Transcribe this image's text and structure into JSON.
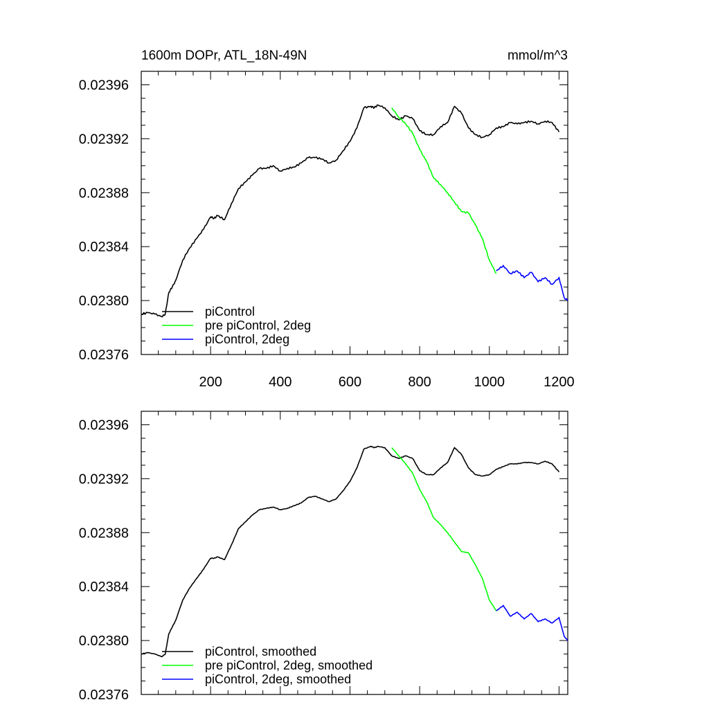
{
  "chart_data": [
    {
      "type": "line",
      "title": "1600m DOPr, ATL_18N-49N",
      "units": "mmol/m^3",
      "xlabel": "",
      "ylabel": "",
      "xlim": [
        1,
        1225
      ],
      "ylim": [
        0.02376,
        0.02397
      ],
      "x_ticks": [
        200,
        400,
        600,
        800,
        1000,
        1200
      ],
      "x_tick_labels": [
        "200",
        "400",
        "600",
        "800",
        "1000",
        "1200"
      ],
      "y_ticks": [
        0.02376,
        0.0238,
        0.02384,
        0.02388,
        0.02392,
        0.02396
      ],
      "y_tick_labels": [
        "0.02376",
        "0.02380",
        "0.02384",
        "0.02388",
        "0.02392",
        "0.02396"
      ],
      "grid": false,
      "legend_position": "bottom-left",
      "series": [
        {
          "name": "piControl",
          "color": "#000000",
          "x": [
            1,
            20,
            40,
            60,
            70,
            80,
            90,
            100,
            120,
            140,
            160,
            180,
            200,
            210,
            220,
            240,
            260,
            280,
            300,
            320,
            340,
            360,
            380,
            400,
            420,
            440,
            460,
            480,
            500,
            520,
            540,
            560,
            580,
            600,
            620,
            640,
            660,
            670,
            680,
            700,
            720,
            740,
            760,
            780,
            800,
            820,
            840,
            860,
            880,
            900,
            920,
            940,
            960,
            980,
            1000,
            1020,
            1040,
            1060,
            1080,
            1100,
            1120,
            1140,
            1160,
            1180,
            1200
          ],
          "y": [
            0.02379,
            0.023791,
            0.02379,
            0.023788,
            0.02379,
            0.023806,
            0.02381,
            0.023815,
            0.02383,
            0.023839,
            0.023846,
            0.023853,
            0.023862,
            0.023861,
            0.023863,
            0.02386,
            0.023872,
            0.023883,
            0.023888,
            0.023893,
            0.023898,
            0.023898,
            0.0239,
            0.023896,
            0.023898,
            0.023899,
            0.023902,
            0.023906,
            0.023906,
            0.023905,
            0.023902,
            0.023904,
            0.023911,
            0.023918,
            0.023928,
            0.023943,
            0.023944,
            0.023943,
            0.023945,
            0.023943,
            0.023937,
            0.023934,
            0.023937,
            0.023935,
            0.023926,
            0.023923,
            0.023923,
            0.023929,
            0.023932,
            0.023944,
            0.023939,
            0.023928,
            0.023923,
            0.023921,
            0.023923,
            0.023928,
            0.023929,
            0.023932,
            0.023931,
            0.023932,
            0.023933,
            0.023931,
            0.023933,
            0.023932,
            0.023925
          ]
        },
        {
          "name": "pre piControl, 2deg",
          "color": "#00ff00",
          "x": [
            720,
            740,
            760,
            780,
            800,
            820,
            840,
            860,
            880,
            900,
            920,
            940,
            960,
            980,
            1000,
            1020
          ],
          "y": [
            0.023943,
            0.023936,
            0.023931,
            0.023924,
            0.023912,
            0.023903,
            0.023891,
            0.023886,
            0.02388,
            0.023873,
            0.023866,
            0.023865,
            0.023856,
            0.023846,
            0.02383,
            0.02382
          ]
        },
        {
          "name": "piControl, 2deg",
          "color": "#0000ff",
          "x": [
            1020,
            1040,
            1060,
            1080,
            1100,
            1120,
            1140,
            1160,
            1180,
            1200,
            1215,
            1225
          ],
          "y": [
            0.023822,
            0.023826,
            0.02382,
            0.023822,
            0.023817,
            0.023821,
            0.023814,
            0.023817,
            0.023812,
            0.023817,
            0.023802,
            0.0238
          ]
        }
      ]
    },
    {
      "type": "line",
      "title": "",
      "xlabel": "",
      "ylabel": "",
      "xlim": [
        1,
        1225
      ],
      "ylim": [
        0.02376,
        0.02397
      ],
      "x_ticks": [
        200,
        400,
        600,
        800,
        1000,
        1200
      ],
      "x_tick_labels": [],
      "y_ticks": [
        0.02376,
        0.0238,
        0.02384,
        0.02388,
        0.02392,
        0.02396
      ],
      "y_tick_labels": [
        "0.02376",
        "0.02380",
        "0.02384",
        "0.02388",
        "0.02392",
        "0.02396"
      ],
      "grid": false,
      "legend_position": "bottom-left",
      "series": [
        {
          "name": "piControl, smoothed",
          "color": "#000000",
          "x": [
            1,
            20,
            40,
            60,
            70,
            80,
            90,
            100,
            120,
            140,
            160,
            180,
            200,
            210,
            220,
            240,
            260,
            280,
            300,
            320,
            340,
            360,
            380,
            400,
            420,
            440,
            460,
            480,
            500,
            520,
            540,
            560,
            580,
            600,
            620,
            640,
            660,
            670,
            680,
            700,
            720,
            740,
            760,
            780,
            800,
            820,
            840,
            860,
            880,
            900,
            920,
            940,
            960,
            980,
            1000,
            1020,
            1040,
            1060,
            1080,
            1100,
            1120,
            1140,
            1160,
            1180,
            1200
          ],
          "y": [
            0.02379,
            0.023791,
            0.02379,
            0.023788,
            0.02379,
            0.023805,
            0.02381,
            0.023815,
            0.02383,
            0.023839,
            0.023846,
            0.023853,
            0.023861,
            0.023861,
            0.023862,
            0.02386,
            0.023871,
            0.023883,
            0.023888,
            0.023893,
            0.023897,
            0.023898,
            0.023899,
            0.023897,
            0.023898,
            0.0239,
            0.023902,
            0.023906,
            0.023907,
            0.023905,
            0.023903,
            0.023905,
            0.023911,
            0.023918,
            0.023928,
            0.023942,
            0.023944,
            0.023943,
            0.023944,
            0.023943,
            0.023937,
            0.023935,
            0.023937,
            0.023935,
            0.023926,
            0.023923,
            0.023923,
            0.023928,
            0.023932,
            0.023943,
            0.023938,
            0.023928,
            0.023923,
            0.023922,
            0.023923,
            0.023927,
            0.023929,
            0.023931,
            0.023931,
            0.023932,
            0.023932,
            0.023931,
            0.023933,
            0.023931,
            0.023925
          ]
        },
        {
          "name": "pre piControl, 2deg, smoothed",
          "color": "#00ff00",
          "x": [
            720,
            740,
            760,
            780,
            800,
            820,
            840,
            860,
            880,
            900,
            920,
            940,
            960,
            980,
            1000,
            1020
          ],
          "y": [
            0.023943,
            0.023937,
            0.023931,
            0.023924,
            0.023912,
            0.023903,
            0.023891,
            0.023886,
            0.02388,
            0.023873,
            0.023866,
            0.023865,
            0.023856,
            0.023846,
            0.02383,
            0.023822
          ]
        },
        {
          "name": "piControl, 2deg, smoothed",
          "color": "#0000ff",
          "x": [
            1020,
            1040,
            1060,
            1080,
            1100,
            1120,
            1140,
            1160,
            1180,
            1200,
            1215,
            1225
          ],
          "y": [
            0.023822,
            0.023826,
            0.023818,
            0.023821,
            0.023816,
            0.02382,
            0.023814,
            0.023816,
            0.023813,
            0.023817,
            0.023803,
            0.0238
          ]
        }
      ]
    }
  ]
}
